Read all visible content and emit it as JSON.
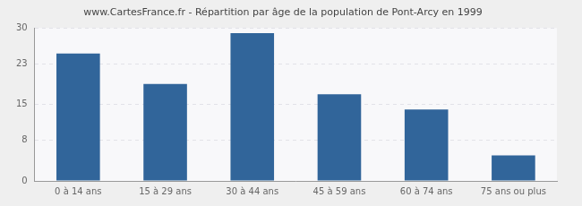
{
  "chart_data": {
    "type": "bar",
    "title": "www.CartesFrance.fr - Répartition par âge de la population de Pont-Arcy en 1999",
    "categories": [
      "0 à 14 ans",
      "15 à 29 ans",
      "30 à 44 ans",
      "45 à 59 ans",
      "60 à 74 ans",
      "75 ans ou plus"
    ],
    "values": [
      25,
      19,
      29,
      17,
      14,
      5
    ],
    "color": "#31659a",
    "ylim": [
      0,
      30
    ],
    "yticks": [
      0,
      8,
      15,
      23,
      30
    ],
    "grid": true
  }
}
